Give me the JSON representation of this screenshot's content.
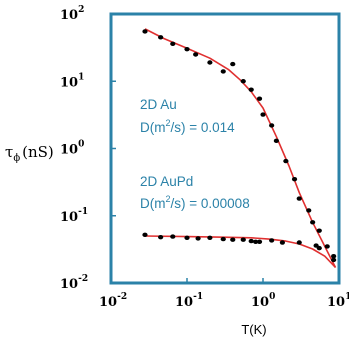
{
  "chart_data": {
    "type": "scatter",
    "xscale": "log",
    "yscale": "log",
    "xlim": [
      0.01,
      10
    ],
    "ylim": [
      0.01,
      100
    ],
    "xlabel": "T(K)",
    "ylabel": {
      "main": "τ",
      "sub": "ϕ",
      "unit": "(nS)"
    },
    "x_ticks": [
      {
        "value": 0.01,
        "base": "10",
        "exp": "-2"
      },
      {
        "value": 0.1,
        "base": "10",
        "exp": "-1"
      },
      {
        "value": 1,
        "base": "10",
        "exp": "0"
      },
      {
        "value": 10,
        "base": "10",
        "exp": "1"
      }
    ],
    "y_ticks": [
      {
        "value": 100,
        "base": "10",
        "exp": "2"
      },
      {
        "value": 10,
        "base": "10",
        "exp": "1"
      },
      {
        "value": 1,
        "base": "10",
        "exp": "0"
      },
      {
        "value": 0.1,
        "base": "10",
        "exp": "-1"
      },
      {
        "value": 0.01,
        "base": "10",
        "exp": "-2"
      }
    ],
    "grid": false,
    "colors": {
      "frame": "#2b82a8",
      "fit": "#e03030",
      "points": "#000000",
      "annotation": "#2b82a8"
    },
    "annotations": [
      {
        "lines": [
          "2D Au",
          "D(m2/s) = 0.014"
        ]
      },
      {
        "lines": [
          "2D AuPd",
          "D(m2/s) = 0.00008"
        ]
      }
    ],
    "series": [
      {
        "points": [
          [
            0.028,
            55
          ],
          [
            0.045,
            45
          ],
          [
            0.065,
            36
          ],
          [
            0.1,
            30
          ],
          [
            0.13,
            25
          ],
          [
            0.2,
            19
          ],
          [
            0.3,
            14
          ],
          [
            0.4,
            18
          ],
          [
            0.55,
            10
          ],
          [
            0.7,
            7.5
          ],
          [
            0.9,
            5.5
          ],
          [
            1.0,
            3.2
          ],
          [
            1.3,
            2.2
          ],
          [
            1.5,
            1.3
          ],
          [
            2.0,
            0.65
          ],
          [
            2.6,
            0.35
          ],
          [
            3.0,
            0.18
          ],
          [
            4.0,
            0.12
          ],
          [
            4.5,
            0.08
          ],
          [
            5.5,
            0.06
          ],
          [
            7.0,
            0.035
          ],
          [
            8.5,
            0.022
          ]
        ],
        "fit": [
          [
            0.028,
            60
          ],
          [
            0.05,
            43
          ],
          [
            0.1,
            31
          ],
          [
            0.2,
            22
          ],
          [
            0.35,
            15
          ],
          [
            0.5,
            10.5
          ],
          [
            0.7,
            7
          ],
          [
            1.0,
            4
          ],
          [
            1.5,
            1.5
          ],
          [
            2.2,
            0.55
          ],
          [
            3.0,
            0.22
          ],
          [
            4.5,
            0.08
          ],
          [
            6.5,
            0.035
          ],
          [
            9.0,
            0.017
          ]
        ]
      },
      {
        "points": [
          [
            0.028,
            0.052
          ],
          [
            0.045,
            0.048
          ],
          [
            0.065,
            0.049
          ],
          [
            0.1,
            0.047
          ],
          [
            0.14,
            0.046
          ],
          [
            0.2,
            0.047
          ],
          [
            0.3,
            0.045
          ],
          [
            0.4,
            0.044
          ],
          [
            0.55,
            0.044
          ],
          [
            0.7,
            0.042
          ],
          [
            0.8,
            0.041
          ],
          [
            0.9,
            0.041
          ],
          [
            1.3,
            0.043
          ],
          [
            1.8,
            0.04
          ],
          [
            3.0,
            0.04
          ],
          [
            5.0,
            0.036
          ],
          [
            5.5,
            0.033
          ],
          [
            8.5,
            0.025
          ]
        ],
        "fit": [
          [
            0.028,
            0.05
          ],
          [
            0.1,
            0.049
          ],
          [
            0.3,
            0.048
          ],
          [
            0.7,
            0.047
          ],
          [
            1.2,
            0.045
          ],
          [
            2.0,
            0.042
          ],
          [
            3.0,
            0.038
          ],
          [
            4.5,
            0.032
          ],
          [
            6.5,
            0.025
          ],
          [
            9.0,
            0.017
          ]
        ]
      }
    ]
  }
}
